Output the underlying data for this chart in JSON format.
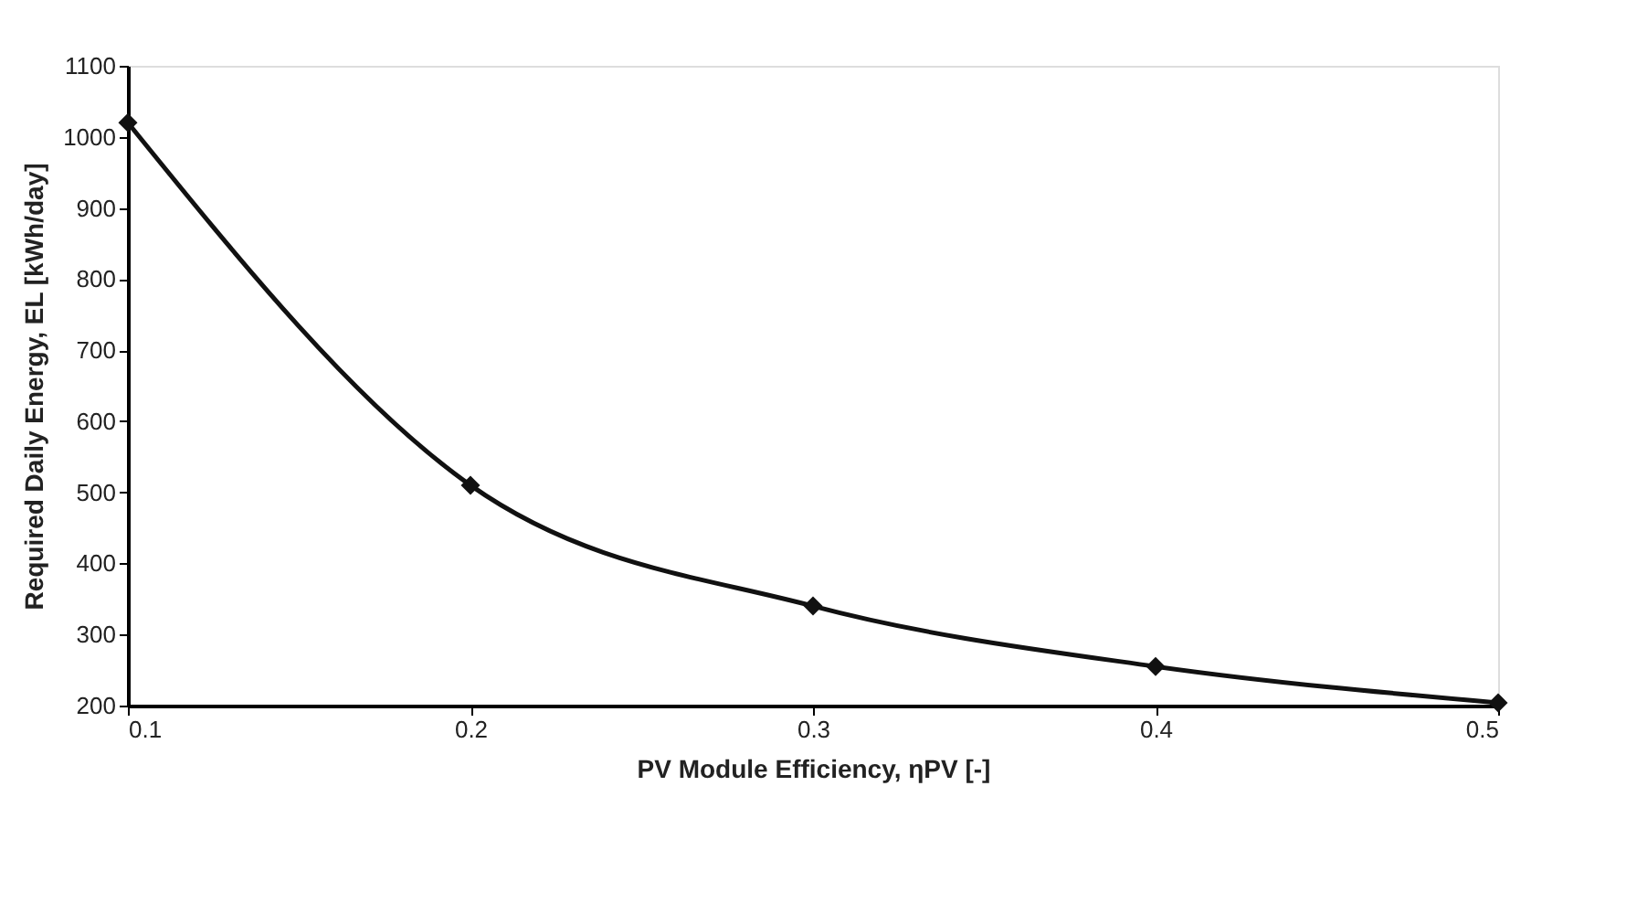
{
  "chart_data": {
    "type": "line",
    "xlabel": "PV Module Efficiency, ηPV [-]",
    "ylabel": "Required Daily Energy, EL [kWh/day]",
    "x": [
      0.1,
      0.2,
      0.3,
      0.4,
      0.5
    ],
    "series": [
      {
        "color": "#111111",
        "values": [
          1020,
          510,
          340,
          255,
          204
        ]
      }
    ],
    "xlim": [
      0.1,
      0.5
    ],
    "xticks": [
      0.1,
      0.2,
      0.3,
      0.4,
      0.5
    ],
    "ylim": [
      200,
      1100
    ],
    "yticks": [
      200,
      300,
      400,
      500,
      600,
      700,
      800,
      900,
      1000,
      1100
    ],
    "marker": "diamond",
    "line_style": "solid",
    "grid": false
  }
}
